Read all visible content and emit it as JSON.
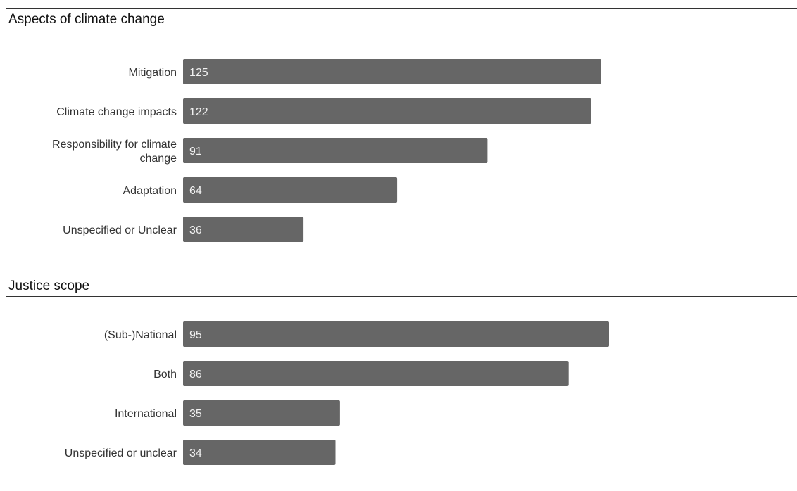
{
  "chart_data": [
    {
      "type": "bar",
      "orientation": "horizontal",
      "title": "Aspects of climate change",
      "categories": [
        "Mitigation",
        "Climate change impacts",
        "Responsibility for climate change",
        "Adaptation",
        "Unspecified or Unclear"
      ],
      "values": [
        125,
        122,
        91,
        64,
        36
      ],
      "xlim": [
        0,
        125
      ],
      "grid": false,
      "data_labels": true,
      "bar_color": "#666666"
    },
    {
      "type": "bar",
      "orientation": "horizontal",
      "title": "Justice scope",
      "categories": [
        "(Sub-)National",
        "Both",
        "International",
        "Unspecified or unclear"
      ],
      "values": [
        95,
        86,
        35,
        34
      ],
      "xlim": [
        0,
        95
      ],
      "grid": false,
      "data_labels": true,
      "bar_color": "#666666"
    }
  ]
}
